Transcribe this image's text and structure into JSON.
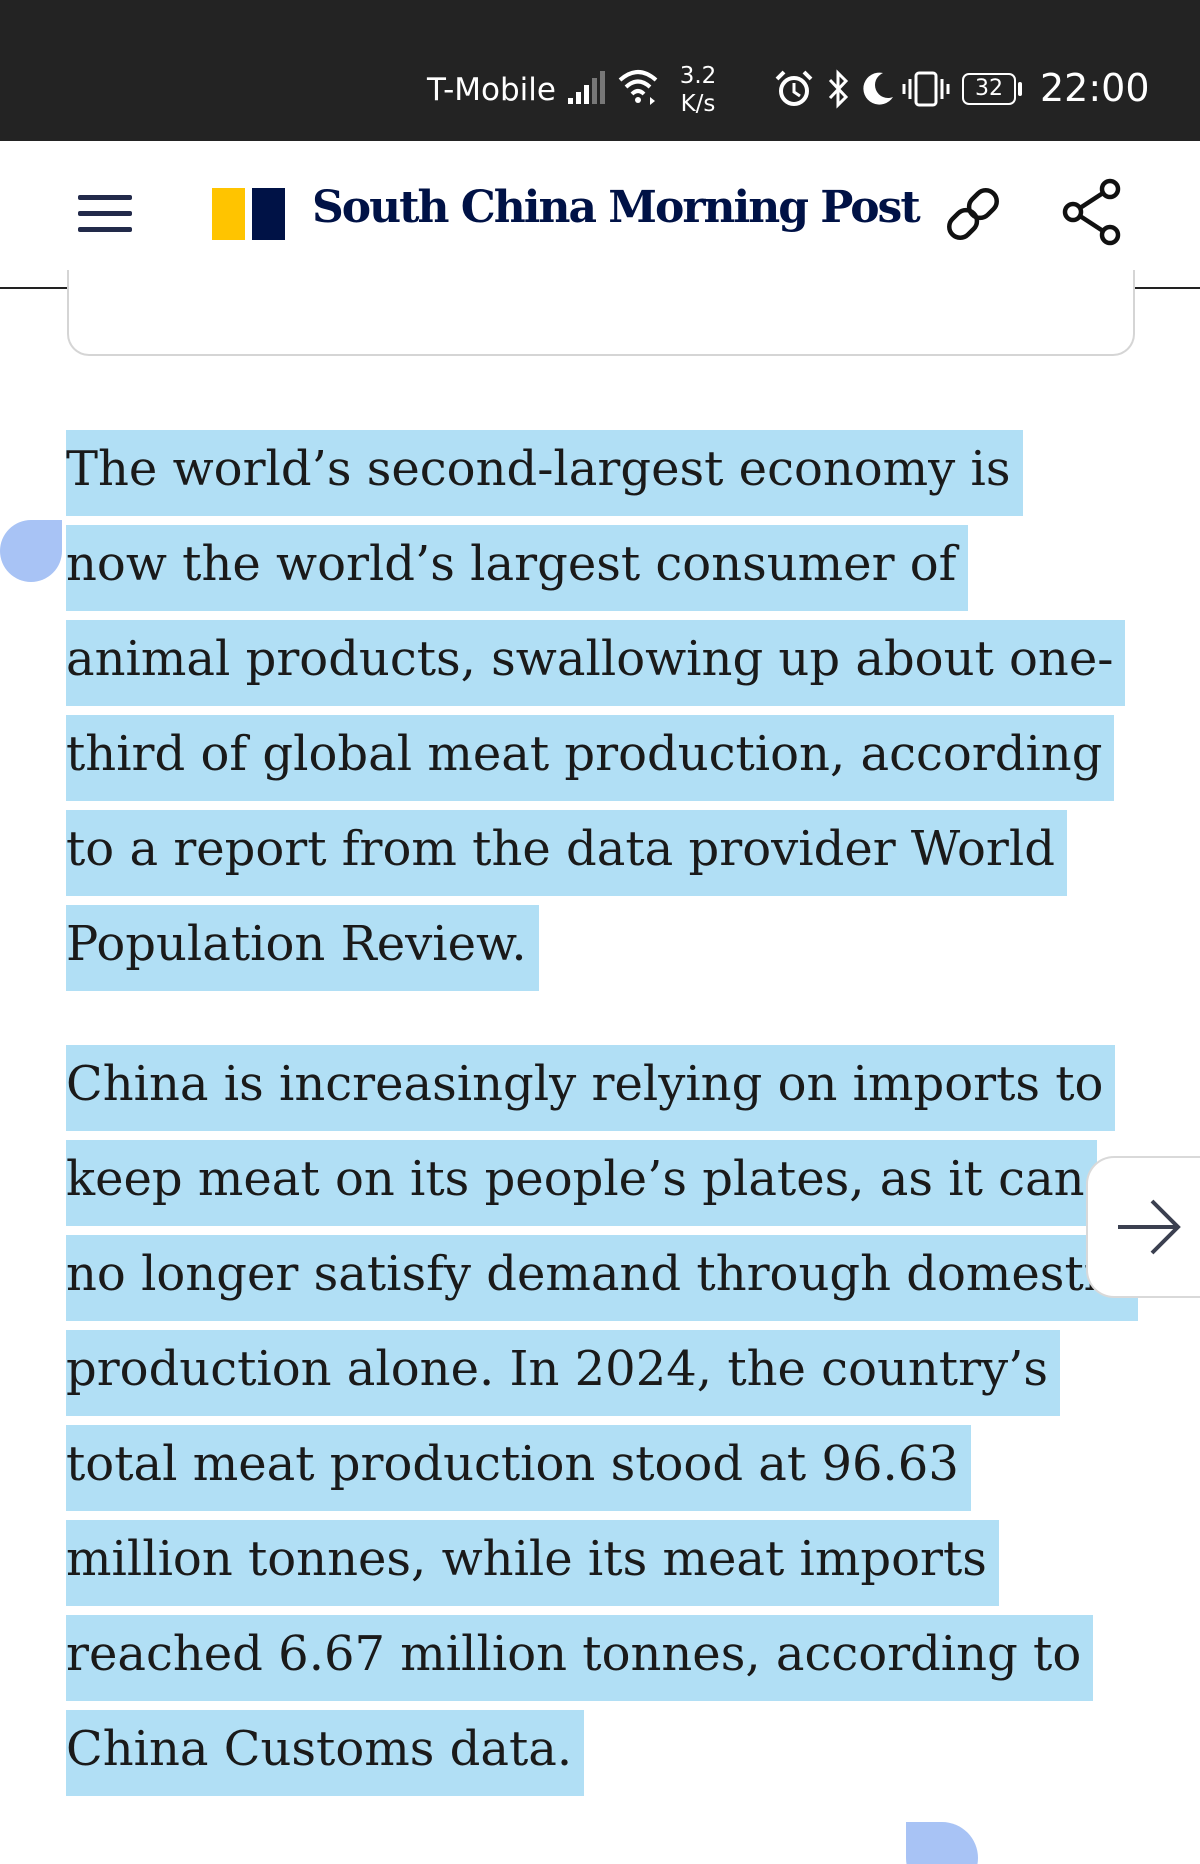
{
  "status_bar": {
    "carrier": "T-Mobile",
    "network_speed_value": "3.2",
    "network_speed_unit": "K/s",
    "battery": "32",
    "time": "22:00",
    "icons": [
      "signal-icon",
      "wifi-icon",
      "alarm-icon",
      "bluetooth-icon",
      "do-not-disturb-icon",
      "vibrate-icon",
      "battery-icon"
    ]
  },
  "header": {
    "brand": "South China Morning Post",
    "logo_colors": {
      "yellow": "#FFC400",
      "navy": "#001246"
    },
    "icons": [
      "menu-icon",
      "link-icon",
      "share-icon"
    ]
  },
  "article": {
    "paragraphs": [
      "The world’s second-largest economy is now the world’s largest consumer of animal products, swallowing up about one-third of global meat production, according to a report from the data provider World Population Review.",
      "China is increasingly relying on imports to keep meat on its people’s plates, as it can no longer satisfy demand through domestic production alone. In 2024, the country’s total meat production stood at 96.63 million tonnes, while its meat imports reached 6.67 million tonnes, according to China Customs data."
    ],
    "selection_color": "#B1DFF5",
    "handle_color": "#A8C3F5"
  }
}
